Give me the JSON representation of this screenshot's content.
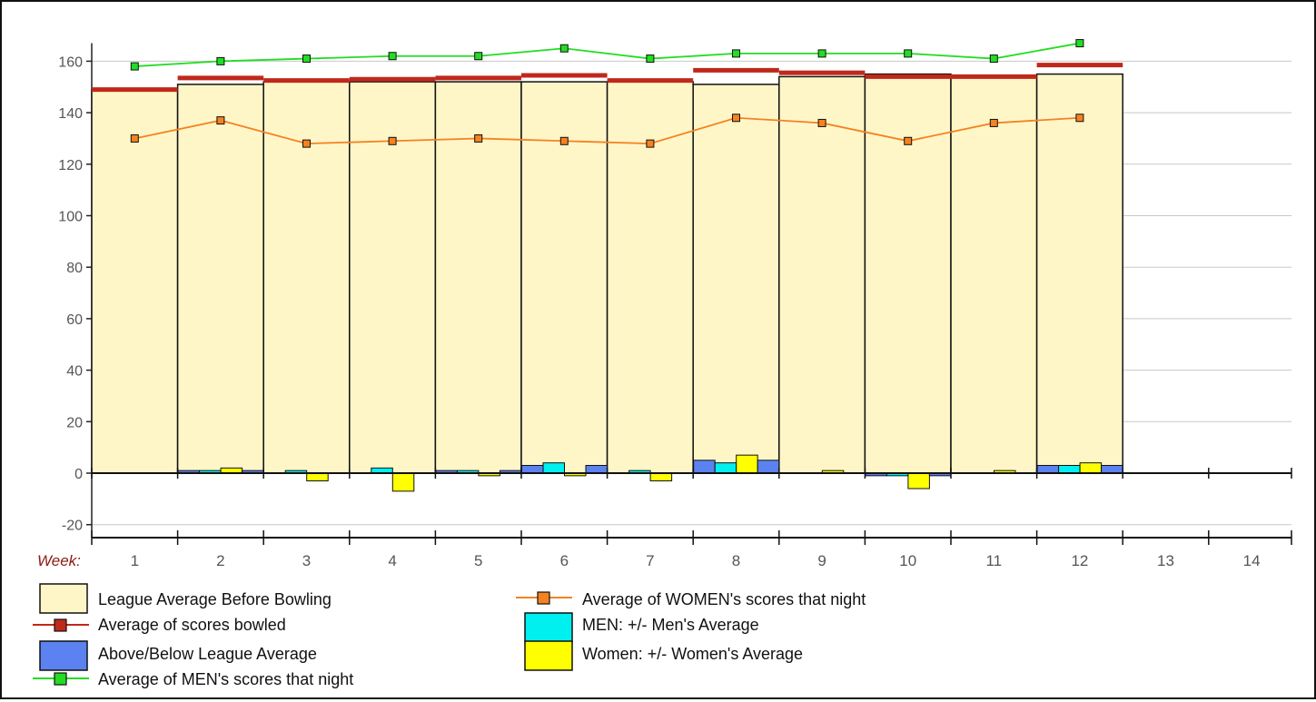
{
  "chart_data": {
    "type": "bar",
    "xlabel": "Week:",
    "categories": [
      "1",
      "2",
      "3",
      "4",
      "5",
      "6",
      "7",
      "8",
      "9",
      "10",
      "11",
      "12",
      "13",
      "14"
    ],
    "ylim": [
      -25,
      170
    ],
    "yticks": [
      -20,
      0,
      20,
      40,
      60,
      80,
      100,
      120,
      140,
      160
    ],
    "grid": true,
    "legend_position": "bottom",
    "colors": {
      "league_avg": "#fff6c8",
      "scores_bowled": "#c0281c",
      "above_below": "#5b82f0",
      "men_diff": "#00f0f0",
      "women_diff": "#ffff00",
      "men_avg_line": "#22dd22",
      "women_avg_line": "#f58220"
    },
    "series": [
      {
        "name": "League Average Before Bowling",
        "kind": "bar",
        "values": [
          149,
          151,
          152,
          152,
          152,
          152,
          152,
          151,
          154,
          155,
          154,
          155,
          null,
          null
        ]
      },
      {
        "name": "Average of scores bowled",
        "kind": "level",
        "values": [
          149,
          153.5,
          152.5,
          153,
          153.5,
          154.5,
          152.5,
          156.5,
          155.5,
          154,
          154,
          158.5,
          null,
          null
        ]
      },
      {
        "name": "Above/Below League Average",
        "kind": "diff",
        "values": [
          0,
          1,
          0,
          0,
          1,
          3,
          0,
          5,
          0,
          -1,
          0,
          3,
          null,
          null
        ]
      },
      {
        "name": "MEN: +/- Men's Average",
        "kind": "diff",
        "values": [
          0,
          1,
          1,
          2,
          1,
          4,
          1,
          4,
          0,
          -1,
          0,
          3,
          null,
          null
        ]
      },
      {
        "name": "Women: +/- Women's Average",
        "kind": "diff",
        "values": [
          0,
          2,
          -3,
          -7,
          -1,
          -1,
          -3,
          7,
          1,
          -6,
          1,
          4,
          null,
          null
        ]
      },
      {
        "name": "Average of MEN's scores that night",
        "kind": "line",
        "values": [
          158,
          160,
          161,
          162,
          162,
          165,
          161,
          163,
          163,
          163,
          161,
          167,
          null,
          null
        ]
      },
      {
        "name": "Average of WOMEN's scores that night",
        "kind": "line",
        "values": [
          130,
          137,
          128,
          129,
          130,
          129,
          128,
          138,
          136,
          129,
          136,
          138,
          null,
          null
        ]
      }
    ]
  }
}
